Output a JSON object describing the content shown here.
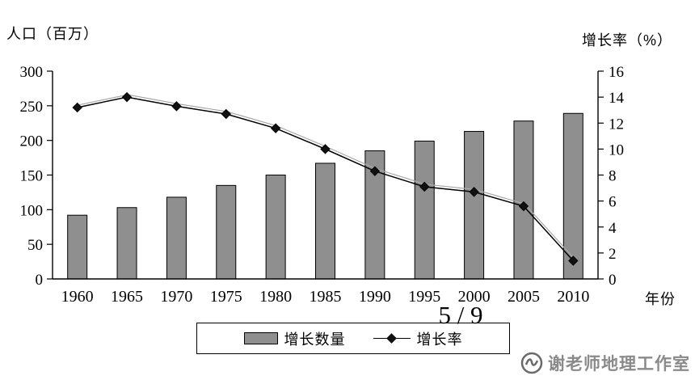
{
  "chart_data": {
    "type": "bar+line",
    "categories": [
      "1960",
      "1965",
      "1970",
      "1975",
      "1980",
      "1985",
      "1990",
      "1995",
      "2000",
      "2005",
      "2010"
    ],
    "series": [
      {
        "name": "增长数量",
        "type": "bar",
        "axis": "left",
        "values": [
          92,
          103,
          118,
          135,
          150,
          167,
          185,
          199,
          213,
          228,
          239
        ]
      },
      {
        "name": "增长率",
        "type": "line",
        "axis": "right",
        "values": [
          13.2,
          14.0,
          13.3,
          12.7,
          11.6,
          10.0,
          8.3,
          7.1,
          6.7,
          5.6,
          1.4
        ]
      }
    ],
    "left_axis": {
      "label": "人口（百万）",
      "min": 0,
      "max": 300,
      "ticks": [
        0,
        50,
        100,
        150,
        200,
        250,
        300
      ]
    },
    "right_axis": {
      "label": "增长率（%）",
      "min": 0,
      "max": 16,
      "ticks": [
        0,
        2,
        4,
        6,
        8,
        10,
        12,
        14,
        16
      ]
    },
    "xlabel": "年份",
    "legend_position": "bottom",
    "grid": false,
    "bar_color": "#8f8f8f",
    "line_color": "#000000"
  },
  "overlay": {
    "page_number": "5 / 9",
    "watermark_text": "谢老师地理工作室"
  }
}
